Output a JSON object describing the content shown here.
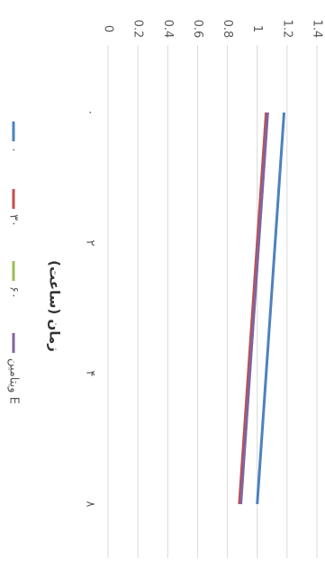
{
  "chart_data": {
    "type": "line",
    "x_label": "زمان (ساعت)",
    "categories": [
      "۰",
      "۲",
      "۴",
      "۸"
    ],
    "series": [
      {
        "name": "۰",
        "color": "#4f81bd",
        "values": [
          1.18,
          1.12,
          1.06,
          1.0
        ]
      },
      {
        "name": "۳۰",
        "color": "#c0504d",
        "values": [
          1.06,
          1.0,
          0.94,
          0.88
        ]
      },
      {
        "name": "۶۰",
        "color": "#9bbb59",
        "values": [
          1.07,
          1.01,
          0.95,
          0.89
        ]
      },
      {
        "name": "ویتامین E",
        "color": "#8064a2",
        "values": [
          1.07,
          1.01,
          0.95,
          0.89
        ]
      }
    ],
    "ylim": [
      0,
      1.4
    ],
    "yticks": [
      0,
      0.2,
      0.4,
      0.6,
      0.8,
      1,
      1.2,
      1.4
    ],
    "grid": true
  }
}
